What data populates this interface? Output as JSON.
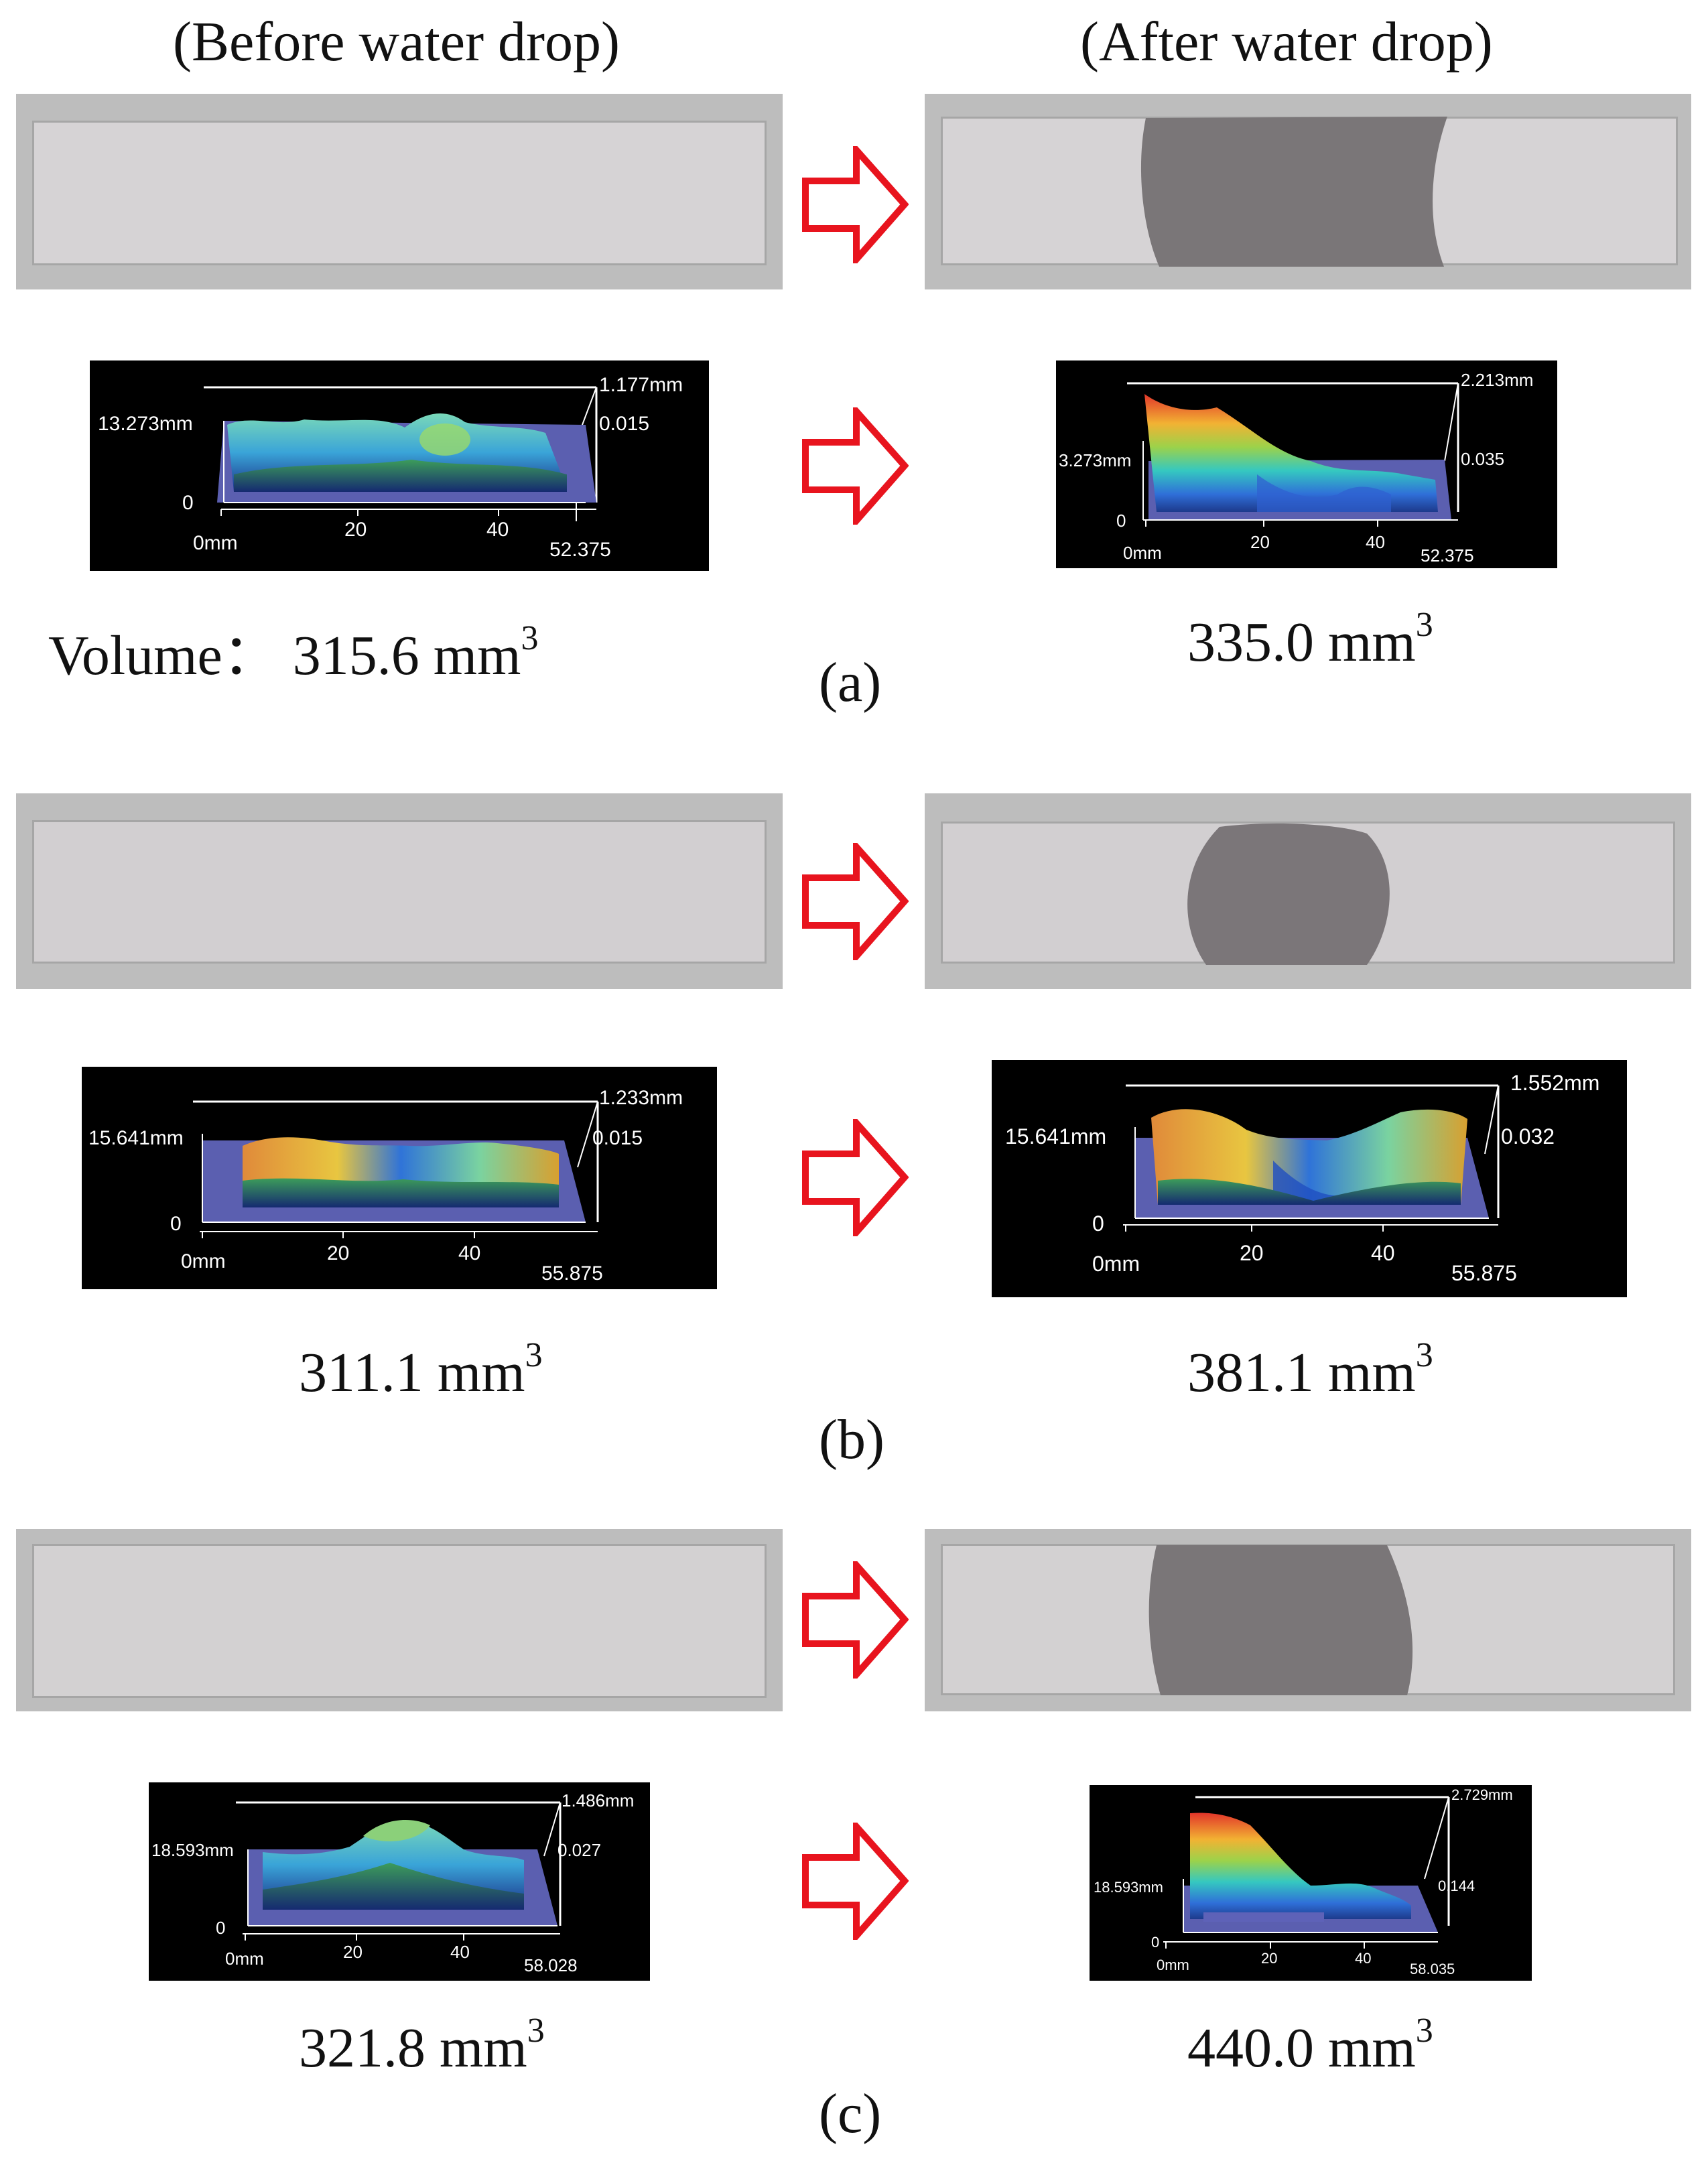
{
  "headers": {
    "before": "(Before water drop)",
    "after": "(After water drop)"
  },
  "colors": {
    "arrow": "#e8141e",
    "map_bg": "#000000",
    "axis": "#ffffff",
    "strip": "#d4d2d3",
    "wet": "#7d797b"
  },
  "icons": {
    "arrow": "right-arrow-icon"
  },
  "volume_prefix": "Volume：",
  "volume_unit": "mm",
  "volume_unit_exp": "3",
  "panels": [
    {
      "label": "(a)",
      "before": {
        "volume": "315.6",
        "z_max": "1.177mm",
        "z_min": "0.015",
        "y_axis": "13.273mm",
        "zero": "0",
        "x0": "0mm",
        "x1": "20",
        "x2": "40",
        "x_end": "52.375"
      },
      "after": {
        "volume": "335.0",
        "z_max": "2.213mm",
        "z_min": "0.035",
        "y_axis": "3.273mm",
        "zero": "0",
        "x0": "0mm",
        "x1": "20",
        "x2": "40",
        "x_end": "52.375"
      }
    },
    {
      "label": "(b)",
      "before": {
        "volume": "311.1",
        "z_max": "1.233mm",
        "z_min": "0.015",
        "y_axis": "15.641mm",
        "zero": "0",
        "x0": "0mm",
        "x1": "20",
        "x2": "40",
        "x_end": "55.875"
      },
      "after": {
        "volume": "381.1",
        "z_max": "1.552mm",
        "z_min": "0.032",
        "y_axis": "15.641mm",
        "zero": "0",
        "x0": "0mm",
        "x1": "20",
        "x2": "40",
        "x_end": "55.875"
      }
    },
    {
      "label": "(c)",
      "before": {
        "volume": "321.8",
        "z_max": "1.486mm",
        "z_min": "0.027",
        "y_axis": "18.593mm",
        "zero": "0",
        "x0": "0mm",
        "x1": "20",
        "x2": "40",
        "x_end": "58.028"
      },
      "after": {
        "volume": "440.0",
        "z_max": "2.729mm",
        "z_min": "0.144",
        "y_axis": "18.593mm",
        "zero": "0",
        "x0": "0mm",
        "x1": "20",
        "x2": "40",
        "x_end": "58.035"
      }
    }
  ]
}
